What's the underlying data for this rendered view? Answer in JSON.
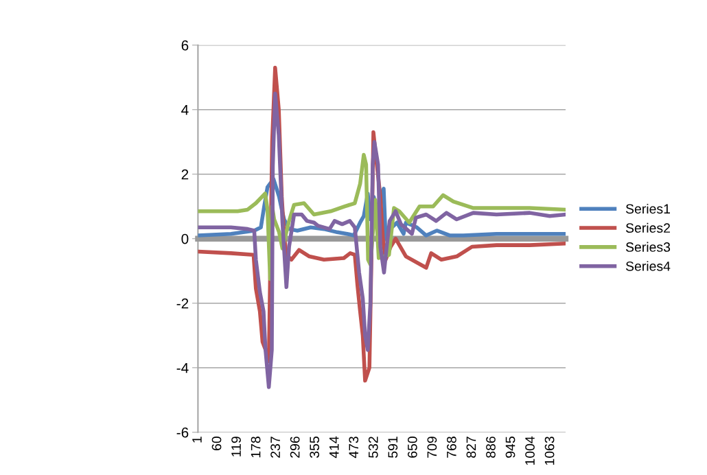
{
  "chart_data": {
    "type": "line",
    "xlim": [
      0.5,
      1108
    ],
    "xticks": [
      1,
      60,
      119,
      178,
      237,
      296,
      355,
      414,
      473,
      532,
      591,
      650,
      709,
      768,
      827,
      886,
      945,
      1004,
      1063
    ],
    "ylim": [
      -6,
      6
    ],
    "yticks": [
      -6,
      -4,
      -2,
      0,
      2,
      4,
      6
    ],
    "grid": "y",
    "legend": "right",
    "marker": "none",
    "line_style": "solid",
    "series": [
      {
        "name": "Series1",
        "color": "#4f81bd",
        "x": [
          1,
          100,
          170,
          190,
          200,
          210,
          228,
          245,
          251,
          260,
          275,
          300,
          340,
          380,
          420,
          450,
          470,
          489,
          500,
          512,
          520,
          530,
          540,
          550,
          560,
          566,
          580,
          600,
          620,
          627,
          660,
          688,
          720,
          760,
          800,
          900,
          1000,
          1108
        ],
        "values": [
          0.1,
          0.15,
          0.25,
          0.35,
          1.0,
          1.6,
          1.85,
          1.3,
          1.0,
          0.6,
          0.3,
          0.25,
          0.35,
          0.3,
          0.2,
          0.15,
          0.1,
          0.5,
          0.7,
          1.4,
          0.6,
          1.3,
          0.8,
          1.3,
          1.55,
          0.0,
          0.3,
          0.5,
          0.15,
          0.5,
          0.35,
          0.1,
          0.25,
          0.1,
          0.1,
          0.15,
          0.15,
          0.15
        ]
      },
      {
        "name": "Series2",
        "color": "#c0504d",
        "x": [
          1,
          100,
          168,
          175,
          187,
          195,
          210,
          214,
          224,
          233,
          244,
          253,
          260,
          267,
          282,
          305,
          336,
          380,
          440,
          459,
          473,
          481,
          489,
          497,
          504,
          517,
          523,
          529,
          535,
          550,
          558,
          566,
          581,
          596,
          627,
          688,
          703,
          734,
          780,
          826,
          900,
          1000,
          1108
        ],
        "values": [
          -0.4,
          -0.45,
          -0.5,
          -1.55,
          -2.25,
          -3.2,
          -3.6,
          -3.8,
          3.0,
          5.3,
          4.0,
          1.3,
          0.1,
          -0.5,
          -0.65,
          -0.35,
          -0.55,
          -0.65,
          -0.6,
          -0.45,
          -0.5,
          -1.45,
          -2.25,
          -3.0,
          -4.4,
          -4.0,
          -0.65,
          3.3,
          2.7,
          1.3,
          -0.05,
          -0.65,
          -0.25,
          0.0,
          -0.55,
          -0.9,
          -0.45,
          -0.65,
          -0.55,
          -0.25,
          -0.2,
          -0.2,
          -0.15
        ]
      },
      {
        "name": "Series3",
        "color": "#9bbb59",
        "x": [
          1,
          120,
          150,
          175,
          203,
          210,
          218,
          224,
          230,
          245,
          255,
          275,
          290,
          320,
          350,
          400,
          443,
          473,
          489,
          500,
          507,
          513,
          520,
          535,
          545,
          576,
          591,
          607,
          637,
          668,
          709,
          739,
          770,
          800,
          830,
          900,
          1000,
          1108
        ],
        "values": [
          0.85,
          0.85,
          0.9,
          1.1,
          1.4,
          0.9,
          -1.25,
          1.0,
          0.6,
          0.2,
          -0.3,
          0.55,
          1.05,
          1.1,
          0.75,
          0.85,
          1.0,
          1.1,
          1.7,
          2.6,
          2.3,
          -0.65,
          -0.8,
          1.2,
          -0.6,
          -0.5,
          0.95,
          0.85,
          0.5,
          1.0,
          1.0,
          1.35,
          1.15,
          1.05,
          0.95,
          0.95,
          0.95,
          0.9
        ]
      },
      {
        "name": "Series4",
        "color": "#8064a2",
        "x": [
          1,
          100,
          150,
          170,
          175,
          187,
          198,
          204,
          214,
          223,
          226,
          233,
          244,
          255,
          267,
          275,
          290,
          313,
          329,
          350,
          362,
          397,
          412,
          435,
          458,
          473,
          486,
          497,
          504,
          512,
          520,
          527,
          532,
          543,
          550,
          561,
          569,
          578,
          596,
          612,
          645,
          657,
          688,
          718,
          749,
          780,
          830,
          900,
          1000,
          1060,
          1108
        ],
        "values": [
          0.35,
          0.35,
          0.3,
          0.25,
          -0.65,
          -1.65,
          -2.25,
          -3.45,
          -4.6,
          -3.45,
          2.25,
          4.5,
          3.2,
          0.5,
          -1.5,
          -0.25,
          0.75,
          0.75,
          0.55,
          0.5,
          0.4,
          0.3,
          0.55,
          0.45,
          0.55,
          0.35,
          -1.05,
          -1.85,
          -3.0,
          -3.45,
          -2.0,
          2.3,
          3.0,
          2.3,
          -0.25,
          -1.05,
          -0.25,
          0.55,
          0.85,
          0.45,
          0.15,
          0.65,
          0.75,
          0.55,
          0.8,
          0.6,
          0.8,
          0.75,
          0.8,
          0.7,
          0.75
        ]
      }
    ]
  }
}
